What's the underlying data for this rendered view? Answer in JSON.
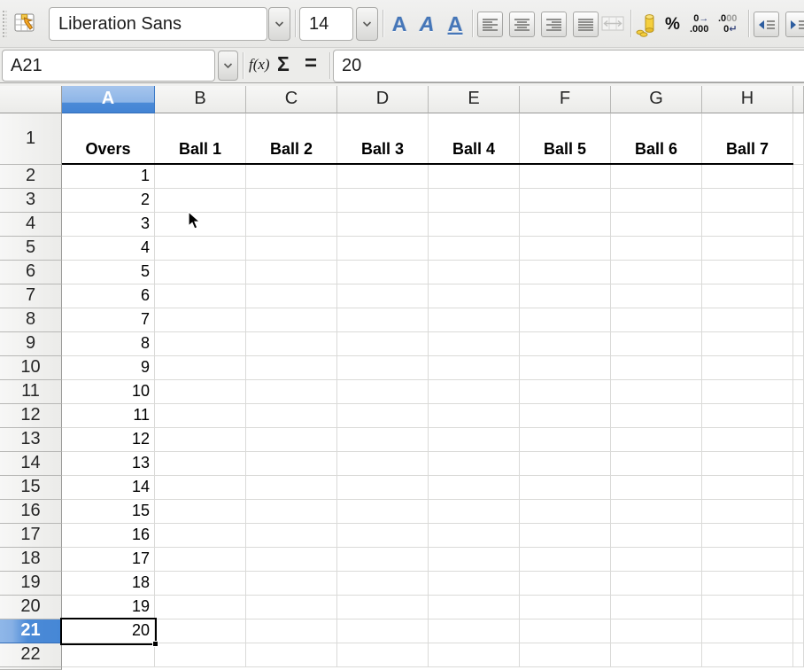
{
  "toolbar": {
    "font_name": "Liberation Sans",
    "font_size": "14",
    "bold_label": "A",
    "italic_label": "A",
    "underline_label": "A",
    "percent_label": "%",
    "add_decimal": {
      "top_digit": "0",
      "top_arrow": "→",
      "bottom": ".000"
    },
    "delete_decimal": {
      "top_black": ".0",
      "top_gray": "00",
      "bottom_digit": "0",
      "bottom_arrow": "↵"
    }
  },
  "formula_bar": {
    "cell_reference": "A21",
    "function_wizard_label": "f(x)",
    "sum_label": "Σ",
    "equals_label": "=",
    "content": "20"
  },
  "sheet": {
    "columns": [
      "A",
      "B",
      "C",
      "D",
      "E",
      "F",
      "G",
      "H"
    ],
    "partial_column_label": "",
    "row_numbers": [
      1,
      2,
      3,
      4,
      5,
      6,
      7,
      8,
      9,
      10,
      11,
      12,
      13,
      14,
      15,
      16,
      17,
      18,
      19,
      20,
      21,
      22
    ],
    "selected_column": "A",
    "selected_row": 21,
    "selected_cell": "A21",
    "header_row": {
      "row": 1,
      "values": [
        "Overs",
        "Ball 1",
        "Ball 2",
        "Ball 3",
        "Ball 4",
        "Ball 5",
        "Ball 6",
        "Ball 7"
      ]
    },
    "column_a_values": [
      1,
      2,
      3,
      4,
      5,
      6,
      7,
      8,
      9,
      10,
      11,
      12,
      13,
      14,
      15,
      16,
      17,
      18,
      19,
      20
    ]
  },
  "colors": {
    "selection_header_blue": "#4b8ad7",
    "selection_border": "#000000",
    "gridline": "#dadad8",
    "toolbar_bg": "#ececea"
  }
}
